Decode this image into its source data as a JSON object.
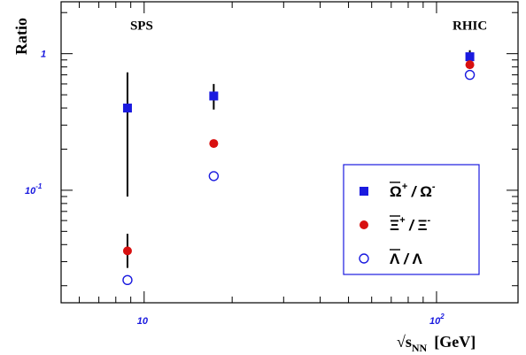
{
  "chart_data": {
    "type": "scatter",
    "xlabel": "√s_NN [GeV]",
    "ylabel": "Ratio",
    "x_scale": "log",
    "y_scale": "log",
    "xlim": [
      5.2,
      190
    ],
    "ylim": [
      0.015,
      2.4
    ],
    "grid": false,
    "legend_position": "bottom-right",
    "x_tick_labels": [
      {
        "value": 10,
        "mantissa": "10",
        "exponent": ""
      },
      {
        "value": 100,
        "mantissa": "10",
        "exponent": "2"
      }
    ],
    "y_tick_labels": [
      {
        "value": 1,
        "mantissa": "1",
        "exponent": ""
      },
      {
        "value": 0.1,
        "mantissa": "10",
        "exponent": "-1"
      }
    ],
    "annotations": [
      {
        "text": "SPS",
        "x": 9.8,
        "y": 1.5
      },
      {
        "text": "RHIC",
        "x": 130,
        "y": 1.5
      }
    ],
    "series": [
      {
        "name": "Ω̄⁺ / Ω⁻",
        "legend_base": "Ω",
        "legend_sup": "+",
        "legend_sep": "/",
        "legend_second": "Ω",
        "legend_second_sup": "-",
        "marker": "square",
        "color": "#1a1adf",
        "points": [
          {
            "x": 8.77,
            "y": 0.4,
            "err_low": 0.31,
            "err_high": 0.33
          },
          {
            "x": 17.3,
            "y": 0.49,
            "err_low": 0.1,
            "err_high": 0.11
          },
          {
            "x": 130,
            "y": 0.95,
            "err_low": 0.09,
            "err_high": 0.11
          }
        ]
      },
      {
        "name": "Ξ̄⁺ / Ξ⁻",
        "legend_base": "Ξ",
        "legend_sup": "+",
        "legend_sep": "/",
        "legend_second": "Ξ",
        "legend_second_sup": "-",
        "marker": "circle-filled",
        "color": "#d81010",
        "points": [
          {
            "x": 8.77,
            "y": 0.036,
            "err_low": 0.009,
            "err_high": 0.012
          },
          {
            "x": 17.3,
            "y": 0.22
          },
          {
            "x": 130,
            "y": 0.83
          }
        ]
      },
      {
        "name": "Λ̄ / Λ",
        "legend_base": "Λ",
        "legend_sup": "",
        "legend_sep": "/",
        "legend_second": "Λ",
        "legend_second_sup": "",
        "marker": "circle-open",
        "color": "#1a1adf",
        "points": [
          {
            "x": 8.77,
            "y": 0.022
          },
          {
            "x": 17.3,
            "y": 0.127
          },
          {
            "x": 130,
            "y": 0.7
          }
        ]
      }
    ]
  }
}
